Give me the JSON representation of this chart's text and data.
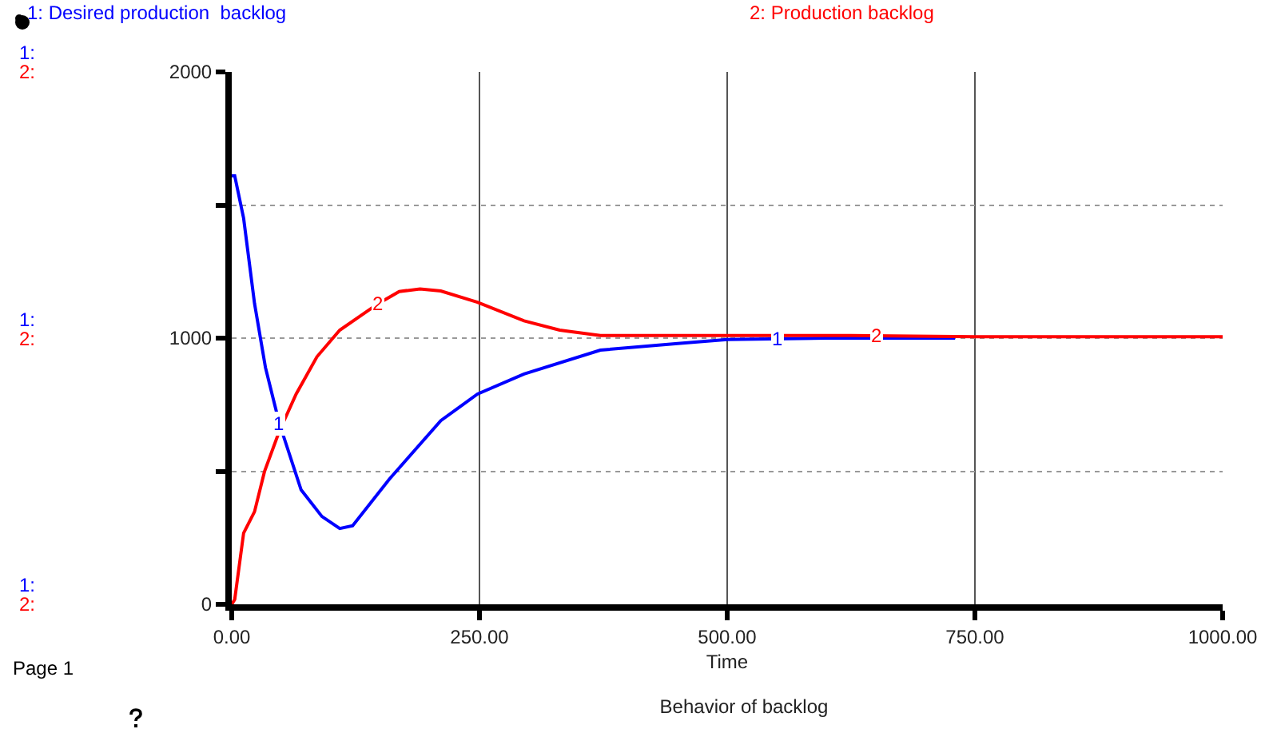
{
  "chart_data": {
    "type": "line",
    "title": "Behavior of backlog",
    "xlabel": "Time",
    "xlim": [
      0,
      1000
    ],
    "xticks": [
      {
        "value": 0,
        "label": "0.00"
      },
      {
        "value": 250,
        "label": "250.00"
      },
      {
        "value": 500,
        "label": "500.00"
      },
      {
        "value": 750,
        "label": "750.00"
      },
      {
        "value": 1000,
        "label": "1000.00"
      }
    ],
    "ylim": [
      0,
      2000
    ],
    "yticks": [
      0,
      {
        "value": 500,
        "label": null
      },
      1000,
      {
        "value": 1500,
        "label": null
      },
      2000
    ],
    "grid": true,
    "legend": "top",
    "series": [
      {
        "name": "1: Desired production  backlog",
        "color": "#0000ff",
        "x": [
          0,
          3,
          12,
          23,
          34,
          48,
          70,
          91,
          109,
          122,
          159,
          211,
          248,
          295,
          372,
          450,
          500,
          600,
          730
        ],
        "values": [
          1610,
          1610,
          1450,
          1130,
          890,
          680,
          430,
          330,
          285,
          295,
          470,
          690,
          790,
          865,
          955,
          980,
          995,
          1000,
          1000
        ]
      },
      {
        "name": "2: Production backlog",
        "color": "#ff0000",
        "x": [
          0,
          3,
          12,
          23,
          33,
          48,
          65,
          86,
          109,
          148,
          169,
          190,
          211,
          248,
          295,
          331,
          372,
          500,
          625,
          750,
          1000
        ],
        "values": [
          0,
          18,
          268,
          348,
          498,
          650,
          790,
          930,
          1030,
          1130,
          1175,
          1185,
          1177,
          1135,
          1065,
          1030,
          1010,
          1010,
          1010,
          1005,
          1005
        ]
      }
    ],
    "annotations": [
      "Page 1",
      "1:",
      "2:",
      "1:",
      "2:",
      "1:",
      "2:",
      {
        "text": "1",
        "x": 48,
        "y": 680
      },
      {
        "text": "2",
        "x": 148,
        "y": 1130
      },
      {
        "text": "1",
        "x": 550,
        "y": 1000
      },
      {
        "text": "2",
        "x": 650,
        "y": 1010
      }
    ]
  }
}
